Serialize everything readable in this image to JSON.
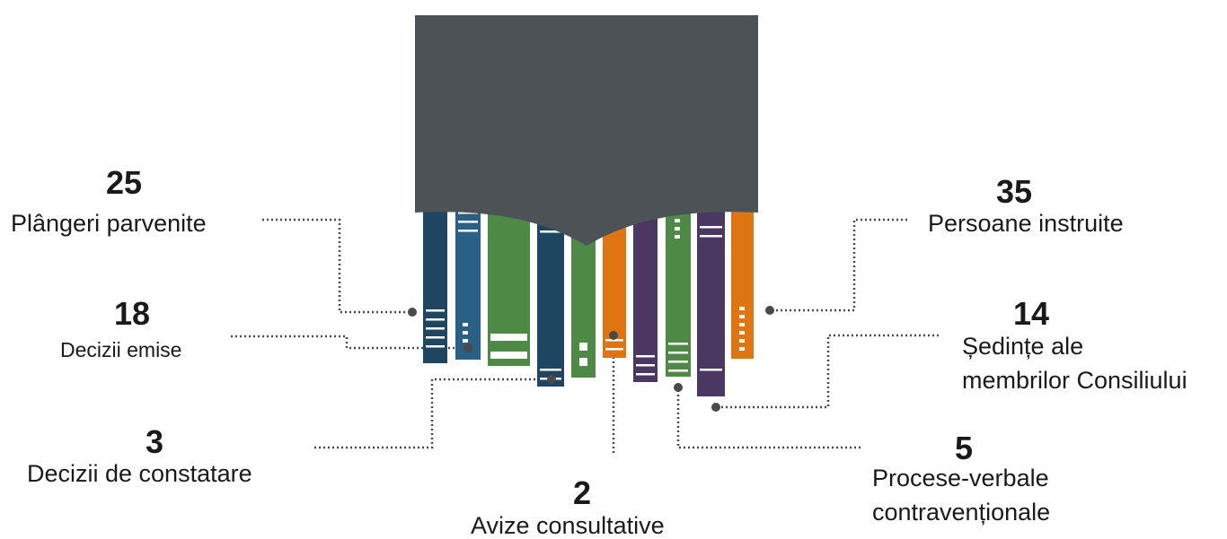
{
  "colors": {
    "cover": "#4d5256",
    "navy": "#1f4560",
    "blue": "#2a5f86",
    "green": "#4e8a45",
    "orange": "#de7512",
    "purple": "#4a3762",
    "text": "#1a1a1a",
    "leader": "#4a4a4a"
  },
  "stats": [
    {
      "id": "plangeri",
      "number": "25",
      "label": "Plângeri parvenite"
    },
    {
      "id": "decizii-emise",
      "number": "18",
      "label": "Decizii emise"
    },
    {
      "id": "decizii-constatare",
      "number": "3",
      "label": "Decizii de constatare"
    },
    {
      "id": "avize",
      "number": "2",
      "label": "Avize consultative"
    },
    {
      "id": "persoane",
      "number": "35",
      "label": "Persoane instruite"
    },
    {
      "id": "sedinte",
      "number": "14",
      "label_line1": "Ședințe ale",
      "label_line2": "membrilor Consiliului"
    },
    {
      "id": "procese",
      "number": "5",
      "label_line1": "Procese-verbale",
      "label_line2": "contravenționale"
    }
  ]
}
